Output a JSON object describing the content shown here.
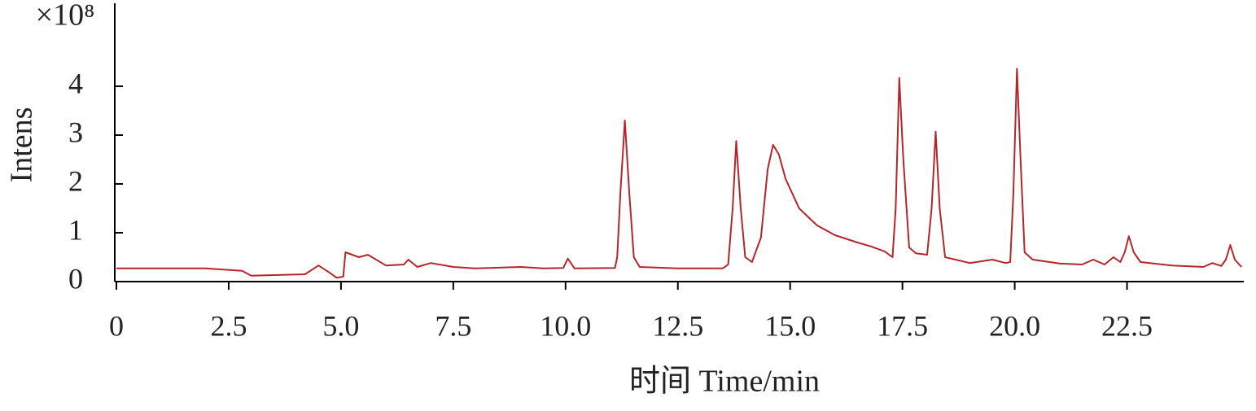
{
  "chart_data": {
    "type": "line",
    "y_label": "Intens",
    "x_label": "时间 Time/min",
    "y_multiplier": "×10⁸",
    "xlim": [
      0,
      25.1
    ],
    "ylim": [
      0,
      5.7
    ],
    "xticks": [
      0,
      2.5,
      {
        "value": 5,
        "label": "5.0"
      },
      7.5,
      {
        "value": 10,
        "label": "10.0"
      },
      12.5,
      {
        "value": 15,
        "label": "15.0"
      },
      17.5,
      {
        "value": 20,
        "label": "20.0"
      },
      22.5
    ],
    "yticks": [
      0,
      1,
      2,
      3,
      4
    ],
    "grid": false,
    "x": [
      0,
      2.0,
      2.8,
      3.0,
      4.2,
      4.5,
      4.75,
      4.9,
      5.05,
      5.1,
      5.4,
      5.6,
      6.0,
      6.4,
      6.5,
      6.7,
      7.0,
      7.5,
      8.0,
      9.0,
      9.5,
      9.95,
      10.05,
      10.2,
      11.1,
      11.15,
      11.22,
      11.32,
      11.42,
      11.52,
      11.65,
      12.5,
      13.5,
      13.62,
      13.72,
      13.8,
      13.9,
      14.0,
      14.15,
      14.35,
      14.5,
      14.62,
      14.75,
      14.9,
      15.2,
      15.6,
      16.0,
      16.5,
      16.8,
      17.1,
      17.28,
      17.35,
      17.43,
      17.52,
      17.65,
      17.8,
      18.05,
      18.15,
      18.24,
      18.33,
      18.45,
      19.0,
      19.5,
      19.8,
      19.9,
      19.97,
      20.05,
      20.13,
      20.22,
      20.4,
      21.0,
      21.5,
      21.75,
      22.0,
      22.2,
      22.35,
      22.45,
      22.54,
      22.65,
      22.8,
      23.5,
      24.2,
      24.4,
      24.6,
      24.7,
      24.8,
      24.9,
      25.05
    ],
    "series": [
      {
        "color": "#b5262b",
        "values": [
          0.27,
          0.27,
          0.22,
          0.12,
          0.15,
          0.33,
          0.18,
          0.08,
          0.1,
          0.6,
          0.5,
          0.55,
          0.33,
          0.35,
          0.45,
          0.3,
          0.38,
          0.3,
          0.27,
          0.3,
          0.27,
          0.28,
          0.47,
          0.27,
          0.28,
          0.5,
          1.8,
          3.3,
          1.8,
          0.5,
          0.3,
          0.27,
          0.27,
          0.35,
          1.5,
          2.88,
          1.5,
          0.5,
          0.4,
          0.9,
          2.3,
          2.8,
          2.6,
          2.1,
          1.5,
          1.15,
          0.95,
          0.8,
          0.72,
          0.62,
          0.5,
          1.5,
          4.17,
          2.5,
          0.7,
          0.58,
          0.55,
          1.5,
          3.07,
          1.5,
          0.5,
          0.38,
          0.45,
          0.38,
          0.4,
          1.8,
          4.36,
          2.5,
          0.6,
          0.45,
          0.37,
          0.35,
          0.45,
          0.35,
          0.5,
          0.4,
          0.6,
          0.93,
          0.6,
          0.4,
          0.33,
          0.3,
          0.38,
          0.32,
          0.45,
          0.75,
          0.45,
          0.3
        ]
      }
    ]
  }
}
